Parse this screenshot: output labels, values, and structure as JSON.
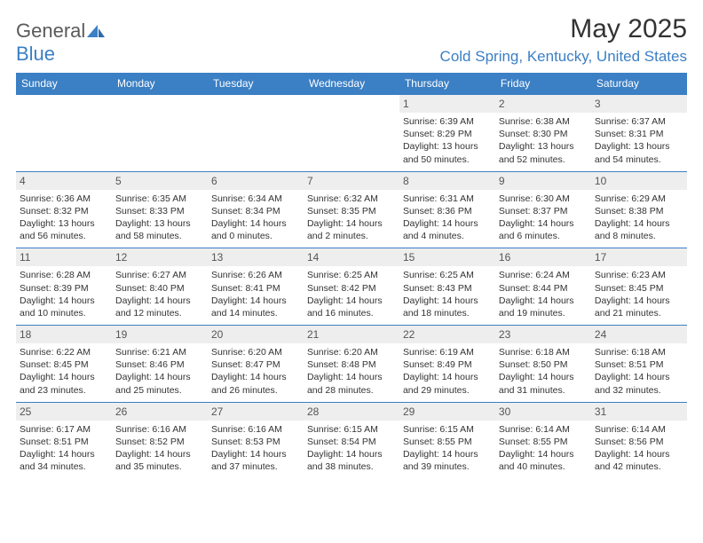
{
  "brand": {
    "name_gray": "General",
    "name_blue": "Blue"
  },
  "title": {
    "month_year": "May 2025",
    "location": "Cold Spring, Kentucky, United States"
  },
  "colors": {
    "header_bg": "#3b7fc4",
    "daynum_bg": "#eeeeee",
    "rule": "#3b7fc4",
    "text": "#333333"
  },
  "dow": [
    "Sunday",
    "Monday",
    "Tuesday",
    "Wednesday",
    "Thursday",
    "Friday",
    "Saturday"
  ],
  "weeks": [
    [
      {
        "n": "",
        "sr": "",
        "ss": "",
        "d1": "",
        "d2": ""
      },
      {
        "n": "",
        "sr": "",
        "ss": "",
        "d1": "",
        "d2": ""
      },
      {
        "n": "",
        "sr": "",
        "ss": "",
        "d1": "",
        "d2": ""
      },
      {
        "n": "",
        "sr": "",
        "ss": "",
        "d1": "",
        "d2": ""
      },
      {
        "n": "1",
        "sr": "Sunrise: 6:39 AM",
        "ss": "Sunset: 8:29 PM",
        "d1": "Daylight: 13 hours",
        "d2": "and 50 minutes."
      },
      {
        "n": "2",
        "sr": "Sunrise: 6:38 AM",
        "ss": "Sunset: 8:30 PM",
        "d1": "Daylight: 13 hours",
        "d2": "and 52 minutes."
      },
      {
        "n": "3",
        "sr": "Sunrise: 6:37 AM",
        "ss": "Sunset: 8:31 PM",
        "d1": "Daylight: 13 hours",
        "d2": "and 54 minutes."
      }
    ],
    [
      {
        "n": "4",
        "sr": "Sunrise: 6:36 AM",
        "ss": "Sunset: 8:32 PM",
        "d1": "Daylight: 13 hours",
        "d2": "and 56 minutes."
      },
      {
        "n": "5",
        "sr": "Sunrise: 6:35 AM",
        "ss": "Sunset: 8:33 PM",
        "d1": "Daylight: 13 hours",
        "d2": "and 58 minutes."
      },
      {
        "n": "6",
        "sr": "Sunrise: 6:34 AM",
        "ss": "Sunset: 8:34 PM",
        "d1": "Daylight: 14 hours",
        "d2": "and 0 minutes."
      },
      {
        "n": "7",
        "sr": "Sunrise: 6:32 AM",
        "ss": "Sunset: 8:35 PM",
        "d1": "Daylight: 14 hours",
        "d2": "and 2 minutes."
      },
      {
        "n": "8",
        "sr": "Sunrise: 6:31 AM",
        "ss": "Sunset: 8:36 PM",
        "d1": "Daylight: 14 hours",
        "d2": "and 4 minutes."
      },
      {
        "n": "9",
        "sr": "Sunrise: 6:30 AM",
        "ss": "Sunset: 8:37 PM",
        "d1": "Daylight: 14 hours",
        "d2": "and 6 minutes."
      },
      {
        "n": "10",
        "sr": "Sunrise: 6:29 AM",
        "ss": "Sunset: 8:38 PM",
        "d1": "Daylight: 14 hours",
        "d2": "and 8 minutes."
      }
    ],
    [
      {
        "n": "11",
        "sr": "Sunrise: 6:28 AM",
        "ss": "Sunset: 8:39 PM",
        "d1": "Daylight: 14 hours",
        "d2": "and 10 minutes."
      },
      {
        "n": "12",
        "sr": "Sunrise: 6:27 AM",
        "ss": "Sunset: 8:40 PM",
        "d1": "Daylight: 14 hours",
        "d2": "and 12 minutes."
      },
      {
        "n": "13",
        "sr": "Sunrise: 6:26 AM",
        "ss": "Sunset: 8:41 PM",
        "d1": "Daylight: 14 hours",
        "d2": "and 14 minutes."
      },
      {
        "n": "14",
        "sr": "Sunrise: 6:25 AM",
        "ss": "Sunset: 8:42 PM",
        "d1": "Daylight: 14 hours",
        "d2": "and 16 minutes."
      },
      {
        "n": "15",
        "sr": "Sunrise: 6:25 AM",
        "ss": "Sunset: 8:43 PM",
        "d1": "Daylight: 14 hours",
        "d2": "and 18 minutes."
      },
      {
        "n": "16",
        "sr": "Sunrise: 6:24 AM",
        "ss": "Sunset: 8:44 PM",
        "d1": "Daylight: 14 hours",
        "d2": "and 19 minutes."
      },
      {
        "n": "17",
        "sr": "Sunrise: 6:23 AM",
        "ss": "Sunset: 8:45 PM",
        "d1": "Daylight: 14 hours",
        "d2": "and 21 minutes."
      }
    ],
    [
      {
        "n": "18",
        "sr": "Sunrise: 6:22 AM",
        "ss": "Sunset: 8:45 PM",
        "d1": "Daylight: 14 hours",
        "d2": "and 23 minutes."
      },
      {
        "n": "19",
        "sr": "Sunrise: 6:21 AM",
        "ss": "Sunset: 8:46 PM",
        "d1": "Daylight: 14 hours",
        "d2": "and 25 minutes."
      },
      {
        "n": "20",
        "sr": "Sunrise: 6:20 AM",
        "ss": "Sunset: 8:47 PM",
        "d1": "Daylight: 14 hours",
        "d2": "and 26 minutes."
      },
      {
        "n": "21",
        "sr": "Sunrise: 6:20 AM",
        "ss": "Sunset: 8:48 PM",
        "d1": "Daylight: 14 hours",
        "d2": "and 28 minutes."
      },
      {
        "n": "22",
        "sr": "Sunrise: 6:19 AM",
        "ss": "Sunset: 8:49 PM",
        "d1": "Daylight: 14 hours",
        "d2": "and 29 minutes."
      },
      {
        "n": "23",
        "sr": "Sunrise: 6:18 AM",
        "ss": "Sunset: 8:50 PM",
        "d1": "Daylight: 14 hours",
        "d2": "and 31 minutes."
      },
      {
        "n": "24",
        "sr": "Sunrise: 6:18 AM",
        "ss": "Sunset: 8:51 PM",
        "d1": "Daylight: 14 hours",
        "d2": "and 32 minutes."
      }
    ],
    [
      {
        "n": "25",
        "sr": "Sunrise: 6:17 AM",
        "ss": "Sunset: 8:51 PM",
        "d1": "Daylight: 14 hours",
        "d2": "and 34 minutes."
      },
      {
        "n": "26",
        "sr": "Sunrise: 6:16 AM",
        "ss": "Sunset: 8:52 PM",
        "d1": "Daylight: 14 hours",
        "d2": "and 35 minutes."
      },
      {
        "n": "27",
        "sr": "Sunrise: 6:16 AM",
        "ss": "Sunset: 8:53 PM",
        "d1": "Daylight: 14 hours",
        "d2": "and 37 minutes."
      },
      {
        "n": "28",
        "sr": "Sunrise: 6:15 AM",
        "ss": "Sunset: 8:54 PM",
        "d1": "Daylight: 14 hours",
        "d2": "and 38 minutes."
      },
      {
        "n": "29",
        "sr": "Sunrise: 6:15 AM",
        "ss": "Sunset: 8:55 PM",
        "d1": "Daylight: 14 hours",
        "d2": "and 39 minutes."
      },
      {
        "n": "30",
        "sr": "Sunrise: 6:14 AM",
        "ss": "Sunset: 8:55 PM",
        "d1": "Daylight: 14 hours",
        "d2": "and 40 minutes."
      },
      {
        "n": "31",
        "sr": "Sunrise: 6:14 AM",
        "ss": "Sunset: 8:56 PM",
        "d1": "Daylight: 14 hours",
        "d2": "and 42 minutes."
      }
    ]
  ]
}
